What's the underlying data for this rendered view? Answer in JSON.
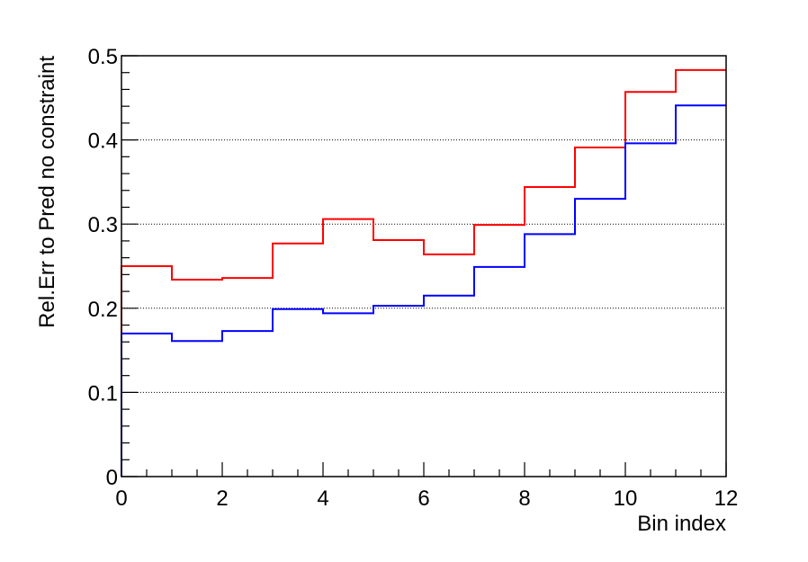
{
  "chart_data": {
    "type": "line",
    "step": true,
    "xlabel": "Bin index",
    "ylabel": "Rel.Err to Pred no constraint",
    "xlim": [
      0,
      12
    ],
    "ylim": [
      0,
      0.5
    ],
    "x_ticks": [
      "0",
      "2",
      "4",
      "6",
      "8",
      "10",
      "12"
    ],
    "y_ticks": [
      "0",
      "0.1",
      "0.2",
      "0.3",
      "0.4",
      "0.5"
    ],
    "grid": "horizontal-dotted",
    "bin_edges": [
      0,
      1,
      2,
      3,
      4,
      5,
      6,
      7,
      8,
      9,
      10,
      11,
      12
    ],
    "series": [
      {
        "color": "#ff0000",
        "values": [
          0.25,
          0.234,
          0.236,
          0.277,
          0.306,
          0.281,
          0.264,
          0.299,
          0.344,
          0.391,
          0.457,
          0.483
        ]
      },
      {
        "color": "#0000ff",
        "values": [
          0.17,
          0.161,
          0.173,
          0.199,
          0.194,
          0.203,
          0.215,
          0.249,
          0.288,
          0.33,
          0.396,
          0.441
        ]
      }
    ]
  }
}
